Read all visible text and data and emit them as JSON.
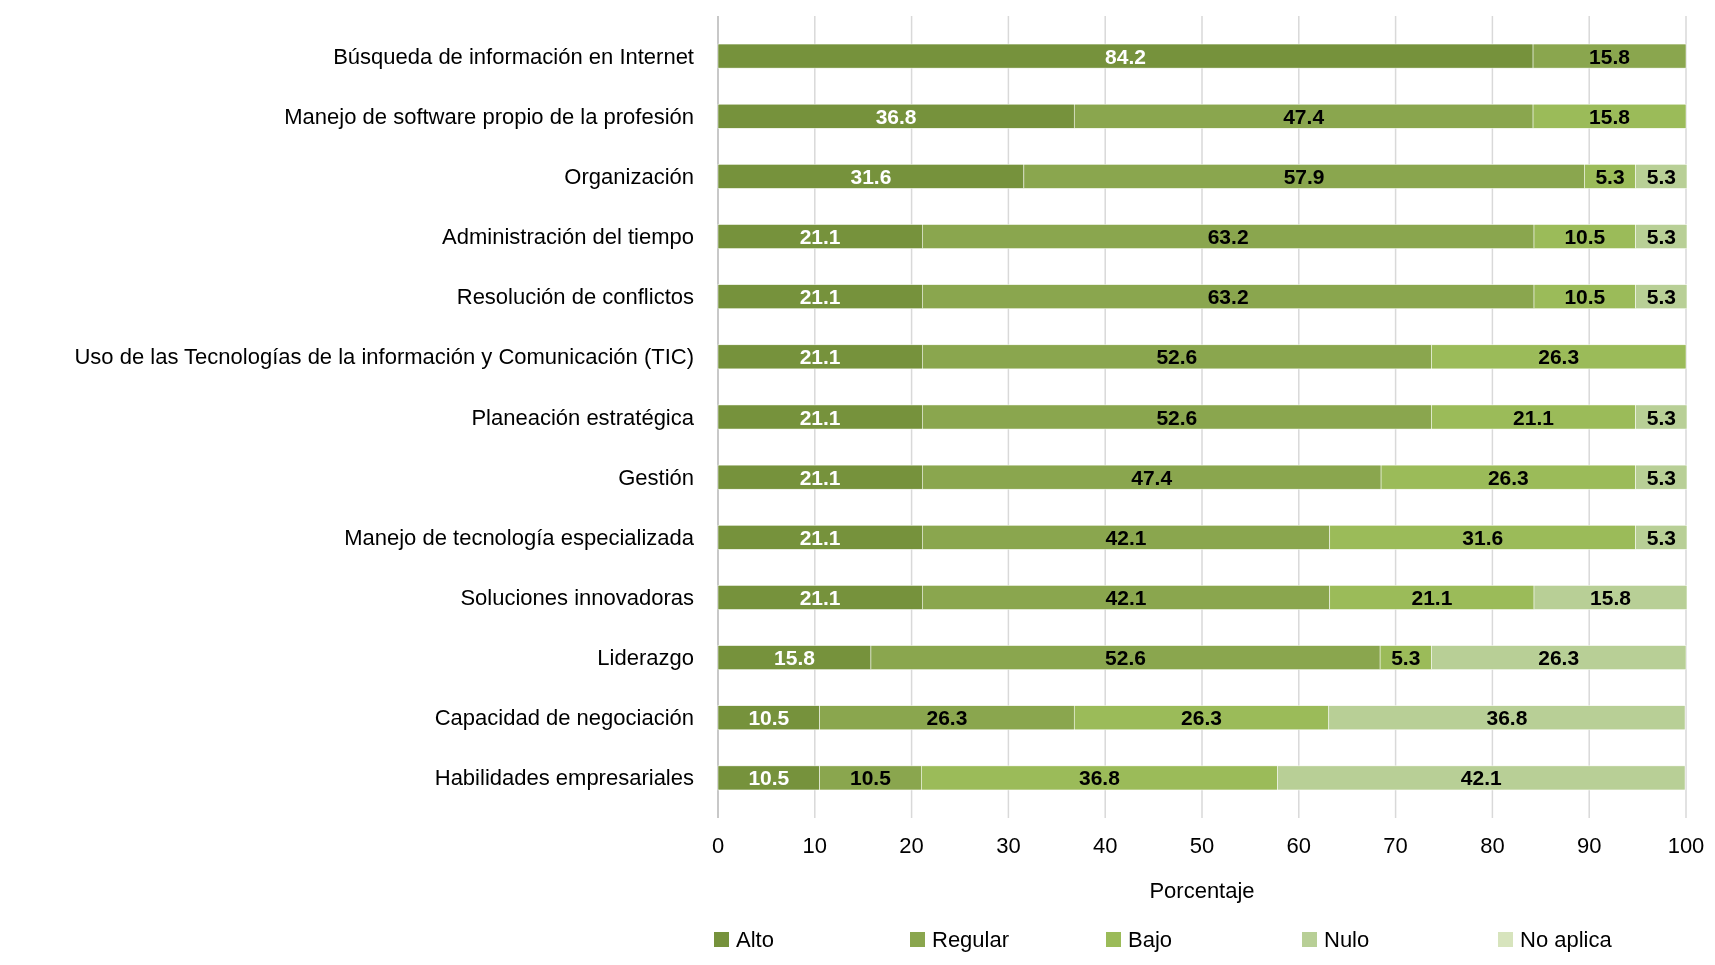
{
  "chart_data": {
    "type": "bar",
    "orientation": "horizontal",
    "stacked": true,
    "xlabel": "Porcentaje",
    "xlim": [
      0,
      100
    ],
    "xticks": [
      0,
      10,
      20,
      30,
      40,
      50,
      60,
      70,
      80,
      90,
      100
    ],
    "grid": "x",
    "legend": "bottom",
    "data_labels": true,
    "categories": [
      "Búsqueda de información en Internet",
      "Manejo de software propio de la profesión",
      "Organización",
      "Administración del tiempo",
      "Resolución de conflictos",
      "Uso de las Tecnologías de la información y Comunicación (TIC)",
      "Planeación estratégica",
      "Gestión",
      "Manejo de tecnología especializada",
      "Soluciones innovadoras",
      "Liderazgo",
      "Capacidad de negociación",
      "Habilidades empresariales"
    ],
    "series": [
      {
        "name": "Alto",
        "color": "#76923c",
        "values": [
          84.2,
          36.8,
          31.6,
          21.1,
          21.1,
          21.1,
          21.1,
          21.1,
          21.1,
          21.1,
          15.8,
          10.5,
          10.5
        ]
      },
      {
        "name": "Regular",
        "color": "#8aa64e",
        "values": [
          15.8,
          47.4,
          57.9,
          63.2,
          63.2,
          52.6,
          52.6,
          47.4,
          42.1,
          42.1,
          52.6,
          26.3,
          10.5
        ]
      },
      {
        "name": "Bajo",
        "color": "#9bbb59",
        "values": [
          null,
          15.8,
          5.3,
          10.5,
          10.5,
          26.3,
          21.1,
          26.3,
          31.6,
          21.1,
          5.3,
          26.3,
          36.8
        ]
      },
      {
        "name": "Nulo",
        "color": "#b8cf96",
        "values": [
          null,
          null,
          5.3,
          5.3,
          5.3,
          null,
          5.3,
          5.3,
          5.3,
          15.8,
          26.3,
          36.8,
          42.1
        ]
      },
      {
        "name": "No aplica",
        "color": "#d7e4bd",
        "values": [
          null,
          null,
          null,
          null,
          null,
          null,
          null,
          null,
          null,
          null,
          null,
          null,
          null
        ]
      }
    ]
  }
}
